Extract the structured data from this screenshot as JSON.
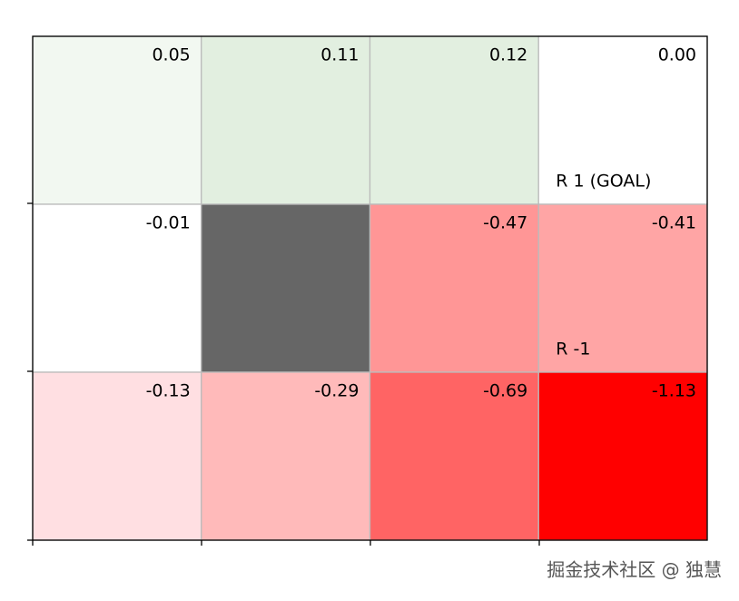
{
  "chart_data": {
    "type": "heatmap",
    "values": [
      [
        0.05,
        0.11,
        0.12,
        0.0
      ],
      [
        -0.01,
        null,
        -0.47,
        -0.41
      ],
      [
        -0.13,
        -0.29,
        -0.69,
        -1.13
      ]
    ],
    "value_labels": [
      [
        "0.05",
        "0.11",
        "0.12",
        "0.00"
      ],
      [
        "-0.01",
        null,
        "-0.47",
        "-0.41"
      ],
      [
        "-0.13",
        "-0.29",
        "-0.69",
        "-1.13"
      ]
    ],
    "colors": [
      [
        "#f2f8f1",
        "#e2efe0",
        "#e2efe0",
        "#ffffff"
      ],
      [
        "#ffffff",
        "#666666",
        "#ff9696",
        "#ffa5a5"
      ],
      [
        "#ffdfe2",
        "#ffbaba",
        "#ff6464",
        "#ff0000"
      ]
    ],
    "cell_notes": [
      [
        null,
        null,
        null,
        "R 1 (GOAL)"
      ],
      [
        null,
        null,
        null,
        "R -1"
      ],
      [
        null,
        null,
        null,
        null
      ]
    ]
  },
  "watermark": "掘金技术社区 @ 独慧"
}
